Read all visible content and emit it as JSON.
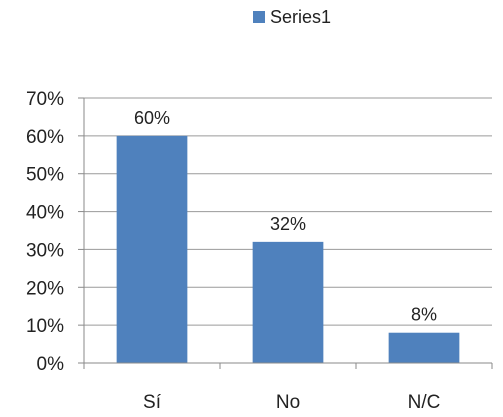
{
  "chart_data": {
    "type": "bar",
    "categories": [
      "Sí",
      "No",
      "N/C"
    ],
    "series": [
      {
        "name": "Series1",
        "values": [
          60,
          32,
          8
        ],
        "color": "#4F81BD"
      }
    ],
    "data_labels": [
      "60%",
      "32%",
      "8%"
    ],
    "ylim": [
      0,
      70
    ],
    "yticks": [
      0,
      10,
      20,
      30,
      40,
      50,
      60,
      70
    ],
    "ytick_labels": [
      "0%",
      "10%",
      "20%",
      "30%",
      "40%",
      "50%",
      "60%",
      "70%"
    ],
    "grid": true,
    "legend": {
      "position": "top",
      "entries": [
        "Series1"
      ]
    }
  }
}
